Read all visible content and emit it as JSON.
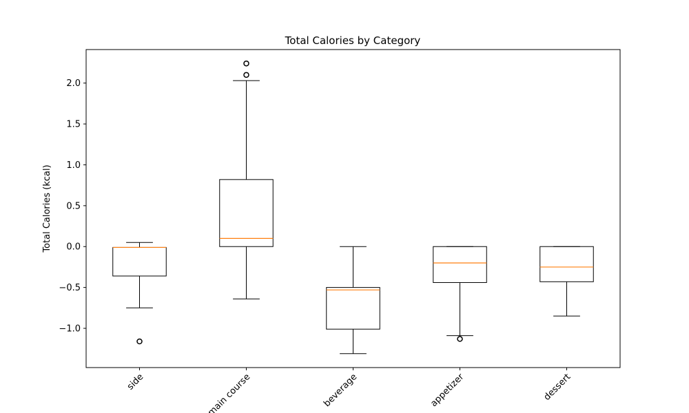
{
  "chart_data": {
    "type": "box",
    "title": "Total Calories by Category",
    "xlabel": "",
    "ylabel": "Total Calories (kcal)",
    "ylim": [
      -1.48,
      2.41
    ],
    "yticks": [
      -1.0,
      -0.5,
      0.0,
      0.5,
      1.0,
      1.5,
      2.0
    ],
    "ytick_labels": [
      "−1.0",
      "−0.5",
      "0.0",
      "0.5",
      "1.0",
      "1.5",
      "2.0"
    ],
    "categories": [
      "side",
      "main course",
      "beverage",
      "appetizer",
      "dessert"
    ],
    "grid": false,
    "colors": {
      "box": "#000000",
      "median": "#ff7f0e",
      "background": "#ffffff"
    },
    "boxes": [
      {
        "category": "side",
        "whisker_low": -0.75,
        "q1": -0.36,
        "median": -0.01,
        "q3": -0.01,
        "whisker_high": 0.05,
        "outliers": [
          -1.16
        ]
      },
      {
        "category": "main course",
        "whisker_low": -0.64,
        "q1": 0.0,
        "median": 0.1,
        "q3": 0.82,
        "whisker_high": 2.03,
        "outliers": [
          2.1,
          2.24
        ]
      },
      {
        "category": "beverage",
        "whisker_low": -1.31,
        "q1": -1.01,
        "median": -0.53,
        "q3": -0.5,
        "whisker_high": 0.0,
        "outliers": []
      },
      {
        "category": "appetizer",
        "whisker_low": -1.09,
        "q1": -0.44,
        "median": -0.2,
        "q3": 0.0,
        "whisker_high": 0.0,
        "outliers": [
          -1.13
        ]
      },
      {
        "category": "dessert",
        "whisker_low": -0.85,
        "q1": -0.43,
        "median": -0.25,
        "q3": 0.0,
        "whisker_high": 0.0,
        "outliers": []
      }
    ]
  }
}
